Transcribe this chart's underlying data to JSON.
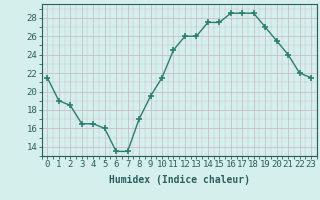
{
  "x": [
    0,
    1,
    2,
    3,
    4,
    5,
    6,
    7,
    8,
    9,
    10,
    11,
    12,
    13,
    14,
    15,
    16,
    17,
    18,
    19,
    20,
    21,
    22,
    23
  ],
  "y": [
    21.5,
    19.0,
    18.5,
    16.5,
    16.5,
    16.0,
    13.5,
    13.5,
    17.0,
    19.5,
    21.5,
    24.5,
    26.0,
    26.0,
    27.5,
    27.5,
    28.5,
    28.5,
    28.5,
    27.0,
    25.5,
    24.0,
    22.0,
    21.5
  ],
  "line_color": "#2d7d6e",
  "marker": "+",
  "marker_size": 4,
  "marker_linewidth": 1.2,
  "line_width": 1.0,
  "bg_color": "#d5efec",
  "grid_color": "#c8bec8",
  "xlabel": "Humidex (Indice chaleur)",
  "ylabel_ticks": [
    14,
    16,
    18,
    20,
    22,
    24,
    26,
    28
  ],
  "xtick_labels": [
    "0",
    "1",
    "2",
    "3",
    "4",
    "5",
    "6",
    "7",
    "8",
    "9",
    "10",
    "11",
    "12",
    "13",
    "14",
    "15",
    "16",
    "17",
    "18",
    "19",
    "20",
    "21",
    "22",
    "23"
  ],
  "xlim": [
    -0.5,
    23.5
  ],
  "ylim": [
    13.0,
    29.5
  ],
  "tick_color": "#2d5f5a",
  "axis_color": "#2d5f5a",
  "label_fontsize": 7,
  "tick_fontsize": 6.5
}
